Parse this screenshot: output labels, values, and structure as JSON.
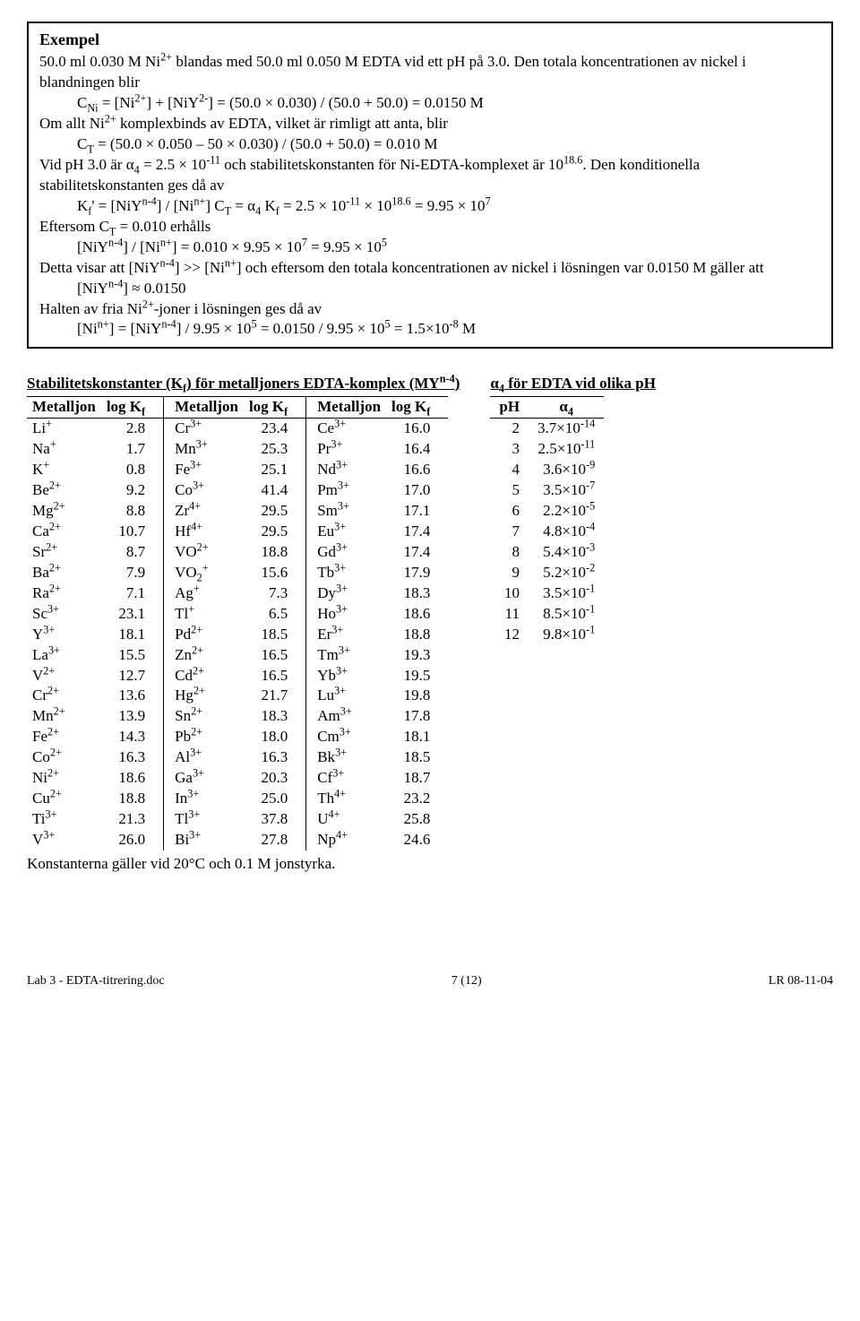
{
  "example": {
    "heading": "Exempel",
    "l1a": "50.0 ml 0.030 M Ni",
    "l1b": " blandas med 50.0 ml 0.050 M EDTA vid ett pH på 3.0. Den totala koncentrationen av nickel i blandningen blir",
    "l2": " = [Ni",
    "l2b": "] + [NiY",
    "l2c": "] = (50.0 × 0.030) / (50.0 + 50.0) = 0.0150 M",
    "l3": "Om allt Ni",
    "l3b": " komplexbinds av EDTA, vilket är rimligt att anta, blir",
    "l4": " = (50.0 × 0.050 – 50 × 0.030) / (50.0 + 50.0) = 0.010 M",
    "l5a": "Vid pH 3.0 är α",
    "l5b": " = 2.5 × 10",
    "l5c": " och stabilitetskonstanten för Ni-EDTA-komplexet är 10",
    "l5d": ". Den konditionella stabilitetskonstanten ges då av",
    "l6a": "' = [NiY",
    "l6b": "] / [Ni",
    "l6c": "] C",
    "l6d": " = α",
    "l6e": " K",
    "l6f": " = 2.5 × 10",
    "l6g": " × 10",
    "l6h": " = 9.95 × 10",
    "l7": "Eftersom C",
    "l7b": " = 0.010 erhålls",
    "l8a": "[NiY",
    "l8b": "] / [Ni",
    "l8c": "] = 0.010 × 9.95 × 10",
    "l8d": " = 9.95 × 10",
    "l9a": "Detta visar att [NiY",
    "l9b": "] >> [Ni",
    "l9c": "] och eftersom den totala koncentrationen av nickel i lösningen var 0.0150 M gäller att",
    "l10": "[NiY",
    "l10b": "] ≈ 0.0150",
    "l11": "Halten av fria Ni",
    "l11b": "-joner i lösningen ges då av",
    "l12a": "[Ni",
    "l12b": "] = [NiY",
    "l12c": "] / 9.95 × 10",
    "l12d": " = 0.0150  / 9.95 × 10",
    "l12e": " = 1.5×10",
    "l12f": " M"
  },
  "kf": {
    "title_a": "Stabilitetskonstanter (K",
    "title_b": ") för metalljoners EDTA-komplex (MY",
    "title_c": ")",
    "col_ion": "Metalljon",
    "col_logk": "log K",
    "note": "Konstanterna gäller vid 20°C och 0.1 M jonstyrka.",
    "col1": [
      {
        "ion": "Li",
        "ch": "+",
        "k": "2.8"
      },
      {
        "ion": "Na",
        "ch": "+",
        "k": "1.7"
      },
      {
        "ion": "K",
        "ch": "+",
        "k": "0.8"
      },
      {
        "ion": "Be",
        "ch": "2+",
        "k": "9.2"
      },
      {
        "ion": "Mg",
        "ch": "2+",
        "k": "8.8"
      },
      {
        "ion": "Ca",
        "ch": "2+",
        "k": "10.7"
      },
      {
        "ion": "Sr",
        "ch": "2+",
        "k": "8.7"
      },
      {
        "ion": "Ba",
        "ch": "2+",
        "k": "7.9"
      },
      {
        "ion": "Ra",
        "ch": "2+",
        "k": "7.1"
      },
      {
        "ion": "Sc",
        "ch": "3+",
        "k": "23.1"
      },
      {
        "ion": "Y",
        "ch": "3+",
        "k": "18.1"
      },
      {
        "ion": "La",
        "ch": "3+",
        "k": "15.5"
      },
      {
        "ion": "V",
        "ch": "2+",
        "k": "12.7"
      },
      {
        "ion": "Cr",
        "ch": "2+",
        "k": "13.6"
      },
      {
        "ion": "Mn",
        "ch": "2+",
        "k": "13.9"
      },
      {
        "ion": "Fe",
        "ch": "2+",
        "k": "14.3"
      },
      {
        "ion": "Co",
        "ch": "2+",
        "k": "16.3"
      },
      {
        "ion": "Ni",
        "ch": "2+",
        "k": "18.6"
      },
      {
        "ion": "Cu",
        "ch": "2+",
        "k": "18.8"
      },
      {
        "ion": "Ti",
        "ch": "3+",
        "k": "21.3"
      },
      {
        "ion": "V",
        "ch": "3+",
        "k": "26.0"
      }
    ],
    "col2": [
      {
        "ion": "Cr",
        "ch": "3+",
        "k": "23.4"
      },
      {
        "ion": "Mn",
        "ch": "3+",
        "k": "25.3"
      },
      {
        "ion": "Fe",
        "ch": "3+",
        "k": "25.1"
      },
      {
        "ion": "Co",
        "ch": "3+",
        "k": "41.4"
      },
      {
        "ion": "Zr",
        "ch": "4+",
        "k": "29.5"
      },
      {
        "ion": "Hf",
        "ch": "4+",
        "k": "29.5"
      },
      {
        "ion": "VO",
        "ch": "2+",
        "k": "18.8"
      },
      {
        "ion": "VO",
        "sub": "2",
        "ch": "+",
        "k": "15.6"
      },
      {
        "ion": "Ag",
        "ch": "+",
        "k": "7.3"
      },
      {
        "ion": "Tl",
        "ch": "+",
        "k": "6.5"
      },
      {
        "ion": "Pd",
        "ch": "2+",
        "k": "18.5"
      },
      {
        "ion": "Zn",
        "ch": "2+",
        "k": "16.5"
      },
      {
        "ion": "Cd",
        "ch": "2+",
        "k": "16.5"
      },
      {
        "ion": "Hg",
        "ch": "2+",
        "k": "21.7"
      },
      {
        "ion": "Sn",
        "ch": "2+",
        "k": "18.3"
      },
      {
        "ion": "Pb",
        "ch": "2+",
        "k": "18.0"
      },
      {
        "ion": "Al",
        "ch": "3+",
        "k": "16.3"
      },
      {
        "ion": "Ga",
        "ch": "3+",
        "k": "20.3"
      },
      {
        "ion": "In",
        "ch": "3+",
        "k": "25.0"
      },
      {
        "ion": "Tl",
        "ch": "3+",
        "k": "37.8"
      },
      {
        "ion": "Bi",
        "ch": "3+",
        "k": "27.8"
      }
    ],
    "col3": [
      {
        "ion": "Ce",
        "ch": "3+",
        "k": "16.0"
      },
      {
        "ion": "Pr",
        "ch": "3+",
        "k": "16.4"
      },
      {
        "ion": "Nd",
        "ch": "3+",
        "k": "16.6"
      },
      {
        "ion": "Pm",
        "ch": "3+",
        "k": "17.0"
      },
      {
        "ion": "Sm",
        "ch": "3+",
        "k": "17.1"
      },
      {
        "ion": "Eu",
        "ch": "3+",
        "k": "17.4"
      },
      {
        "ion": "Gd",
        "ch": "3+",
        "k": "17.4"
      },
      {
        "ion": "Tb",
        "ch": "3+",
        "k": "17.9"
      },
      {
        "ion": "Dy",
        "ch": "3+",
        "k": "18.3"
      },
      {
        "ion": "Ho",
        "ch": "3+",
        "k": "18.6"
      },
      {
        "ion": "Er",
        "ch": "3+",
        "k": "18.8"
      },
      {
        "ion": "Tm",
        "ch": "3+",
        "k": "19.3"
      },
      {
        "ion": "Yb",
        "ch": "3+",
        "k": "19.5"
      },
      {
        "ion": "Lu",
        "ch": "3+",
        "k": "19.8"
      },
      {
        "ion": "Am",
        "ch": "3+",
        "k": "17.8"
      },
      {
        "ion": "Cm",
        "ch": "3+",
        "k": "18.1"
      },
      {
        "ion": "Bk",
        "ch": "3+",
        "k": "18.5"
      },
      {
        "ion": "Cf",
        "ch": "3+",
        "k": "18.7"
      },
      {
        "ion": "Th",
        "ch": "4+",
        "k": "23.2"
      },
      {
        "ion": "U",
        "ch": "4+",
        "k": "25.8"
      },
      {
        "ion": "Np",
        "ch": "4+",
        "k": "24.6"
      }
    ]
  },
  "alpha": {
    "title_a": "α",
    "title_b": " för EDTA vid olika pH",
    "col_ph": "pH",
    "col_alpha": "α",
    "rows": [
      {
        "ph": "2",
        "a": "3.7×10",
        "e": "-14"
      },
      {
        "ph": "3",
        "a": "2.5×10",
        "e": "-11"
      },
      {
        "ph": "4",
        "a": "3.6×10",
        "e": "-9"
      },
      {
        "ph": "5",
        "a": "3.5×10",
        "e": "-7"
      },
      {
        "ph": "6",
        "a": "2.2×10",
        "e": "-5"
      },
      {
        "ph": "7",
        "a": "4.8×10",
        "e": "-4"
      },
      {
        "ph": "8",
        "a": "5.4×10",
        "e": "-3"
      },
      {
        "ph": "9",
        "a": "5.2×10",
        "e": "-2"
      },
      {
        "ph": "10",
        "a": "3.5×10",
        "e": "-1"
      },
      {
        "ph": "11",
        "a": "8.5×10",
        "e": "-1"
      },
      {
        "ph": "12",
        "a": "9.8×10",
        "e": "-1"
      }
    ]
  },
  "footer": {
    "left": "Lab 3 - EDTA-titrering.doc",
    "center": "7 (12)",
    "right": "LR 08-11-04"
  }
}
